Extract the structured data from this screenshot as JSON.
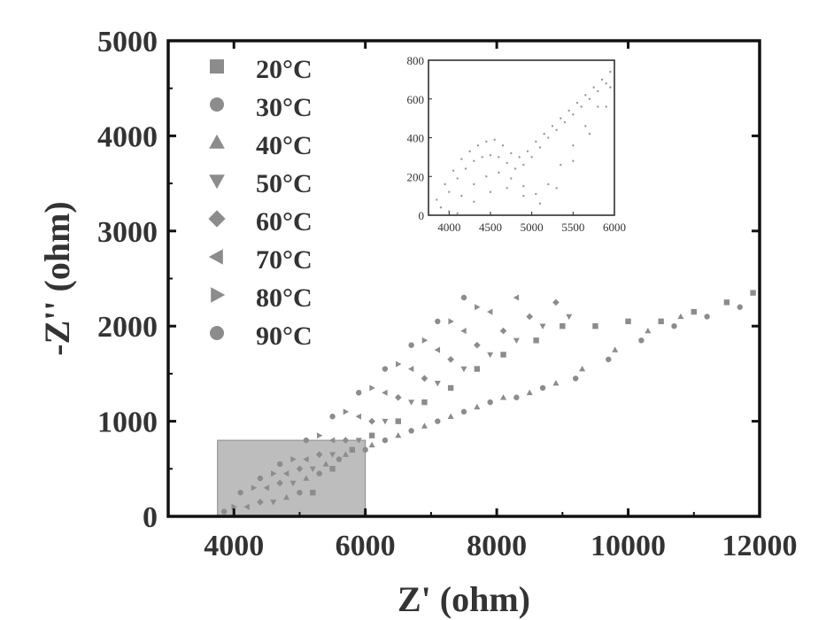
{
  "chart_data": [
    {
      "type": "scatter",
      "title": "",
      "xlabel": "Z' (ohm)",
      "ylabel": "-Z'' (ohm)",
      "xlim": [
        3000,
        12000
      ],
      "ylim": [
        0,
        5000
      ],
      "xticks": [
        4000,
        6000,
        8000,
        10000,
        12000
      ],
      "yticks": [
        0,
        1000,
        2000,
        3000,
        4000,
        5000
      ],
      "xtick_labels": [
        "4000",
        "6000",
        "8000",
        "10000",
        "12000"
      ],
      "ytick_labels": [
        "0",
        "1000",
        "2000",
        "3000",
        "4000",
        "5000"
      ],
      "grid": false,
      "legend_position": "top-left",
      "marker_color": "#8c8c8c",
      "highlight_region": {
        "x": [
          3750,
          6000
        ],
        "y": [
          0,
          800
        ],
        "color": "#bdbdbd"
      },
      "series": [
        {
          "name": "20°C",
          "marker": "square",
          "x": [
            5200,
            5500,
            5800,
            6100,
            6500,
            6900,
            7300,
            7700,
            8100,
            8600,
            9000,
            9500,
            10000,
            10500,
            11000,
            11500,
            11900
          ],
          "y": [
            250,
            500,
            700,
            850,
            1000,
            1200,
            1350,
            1550,
            1700,
            1850,
            2000,
            2000,
            2050,
            2050,
            2150,
            2250,
            2350
          ]
        },
        {
          "name": "30°C",
          "marker": "circle",
          "x": [
            5000,
            5300,
            5600,
            6000,
            6300,
            6700,
            7100,
            7500,
            7900,
            8300,
            8700,
            9200,
            9700,
            10200,
            10700,
            11200,
            11700
          ],
          "y": [
            250,
            450,
            600,
            700,
            800,
            900,
            1000,
            1100,
            1200,
            1250,
            1350,
            1450,
            1650,
            1850,
            2000,
            2100,
            2200
          ]
        },
        {
          "name": "40°C",
          "marker": "triangle-up",
          "x": [
            4800,
            5100,
            5400,
            5700,
            6100,
            6500,
            6900,
            7300,
            7700,
            8100,
            8500,
            8900,
            9300,
            9800,
            10300,
            10800
          ],
          "y": [
            200,
            400,
            550,
            650,
            750,
            850,
            950,
            1050,
            1150,
            1250,
            1300,
            1400,
            1550,
            1750,
            1950,
            2100
          ]
        },
        {
          "name": "50°C",
          "marker": "triangle-down",
          "x": [
            4600,
            4900,
            5200,
            5500,
            5900,
            6300,
            6700,
            7100,
            7500,
            7900,
            8300,
            8700,
            9100
          ],
          "y": [
            150,
            350,
            500,
            650,
            800,
            1000,
            1200,
            1400,
            1550,
            1700,
            1850,
            2000,
            2100
          ]
        },
        {
          "name": "60°C",
          "marker": "diamond",
          "x": [
            4400,
            4700,
            5000,
            5300,
            5700,
            6100,
            6500,
            6900,
            7300,
            7700,
            8100,
            8500,
            8900
          ],
          "y": [
            150,
            350,
            500,
            650,
            800,
            1000,
            1250,
            1450,
            1650,
            1800,
            1950,
            2100,
            2250
          ]
        },
        {
          "name": "70°C",
          "marker": "triangle-left",
          "x": [
            4200,
            4500,
            4800,
            5100,
            5500,
            5900,
            6300,
            6700,
            7100,
            7500,
            7900,
            8300
          ],
          "y": [
            100,
            300,
            450,
            600,
            800,
            1050,
            1300,
            1550,
            1750,
            1950,
            2150,
            2300
          ]
        },
        {
          "name": "80°C",
          "marker": "triangle-right",
          "x": [
            4000,
            4300,
            4600,
            4900,
            5300,
            5700,
            6100,
            6500,
            6900,
            7300,
            7700
          ],
          "y": [
            100,
            300,
            450,
            600,
            850,
            1100,
            1350,
            1600,
            1850,
            2050,
            2200
          ]
        },
        {
          "name": "90°C",
          "marker": "circle",
          "x": [
            3850,
            4100,
            4400,
            4700,
            5100,
            5500,
            5900,
            6300,
            6700,
            7100,
            7500
          ],
          "y": [
            50,
            250,
            400,
            550,
            800,
            1050,
            1300,
            1550,
            1800,
            2050,
            2300
          ]
        }
      ]
    },
    {
      "type": "scatter",
      "title": "",
      "xlabel": "",
      "ylabel": "",
      "xlim": [
        3750,
        6000
      ],
      "ylim": [
        0,
        800
      ],
      "xticks": [
        4000,
        4500,
        5000,
        5500,
        6000
      ],
      "yticks": [
        0,
        200,
        400,
        600,
        800
      ],
      "xtick_labels": [
        "4000",
        "4500",
        "5000",
        "5500",
        "6000"
      ],
      "ytick_labels": [
        "0",
        "200",
        "400",
        "600",
        "800"
      ],
      "grid": false,
      "legend_position": "none",
      "marker_color": "#9a9a9a",
      "series": [
        {
          "marker": "dot",
          "x": [
            3850,
            3950,
            4050,
            4150,
            4250,
            4350,
            4450,
            4550,
            4650,
            4750,
            4850,
            4950,
            5050,
            5150,
            5250,
            5350,
            5450,
            5550,
            5650,
            5750,
            5850,
            5950
          ],
          "y": [
            80,
            160,
            230,
            290,
            330,
            360,
            380,
            390,
            360,
            320,
            300,
            330,
            380,
            420,
            460,
            500,
            540,
            580,
            620,
            660,
            700,
            740
          ]
        },
        {
          "marker": "dot",
          "x": [
            3900,
            4000,
            4100,
            4200,
            4300,
            4400,
            4500,
            4600,
            4700,
            4800,
            4900,
            5000,
            5100,
            5200,
            5300,
            5400,
            5500,
            5600,
            5700,
            5800,
            5900
          ],
          "y": [
            40,
            120,
            190,
            240,
            280,
            300,
            310,
            300,
            270,
            240,
            260,
            300,
            350,
            400,
            440,
            480,
            520,
            560,
            600,
            640,
            680
          ]
        },
        {
          "marker": "dot",
          "x": [
            4000,
            4150,
            4300,
            4450,
            4600,
            4750,
            4900,
            5050,
            5200,
            5350,
            5500,
            5650,
            5800,
            5950
          ],
          "y": [
            20,
            100,
            160,
            200,
            220,
            190,
            150,
            110,
            160,
            260,
            360,
            460,
            560,
            660
          ]
        },
        {
          "marker": "dot",
          "x": [
            4100,
            4300,
            4500,
            4700,
            4900,
            5100,
            5300,
            5500,
            5700,
            5900
          ],
          "y": [
            10,
            70,
            120,
            140,
            100,
            60,
            140,
            280,
            420,
            560
          ]
        }
      ]
    }
  ],
  "legend": {
    "items": [
      {
        "label": "20°C",
        "marker": "square"
      },
      {
        "label": "30°C",
        "marker": "circle"
      },
      {
        "label": "40°C",
        "marker": "triangle-up"
      },
      {
        "label": "50°C",
        "marker": "triangle-down"
      },
      {
        "label": "60°C",
        "marker": "diamond"
      },
      {
        "label": "70°C",
        "marker": "triangle-left"
      },
      {
        "label": "80°C",
        "marker": "triangle-right"
      },
      {
        "label": "90°C",
        "marker": "circle"
      }
    ]
  }
}
